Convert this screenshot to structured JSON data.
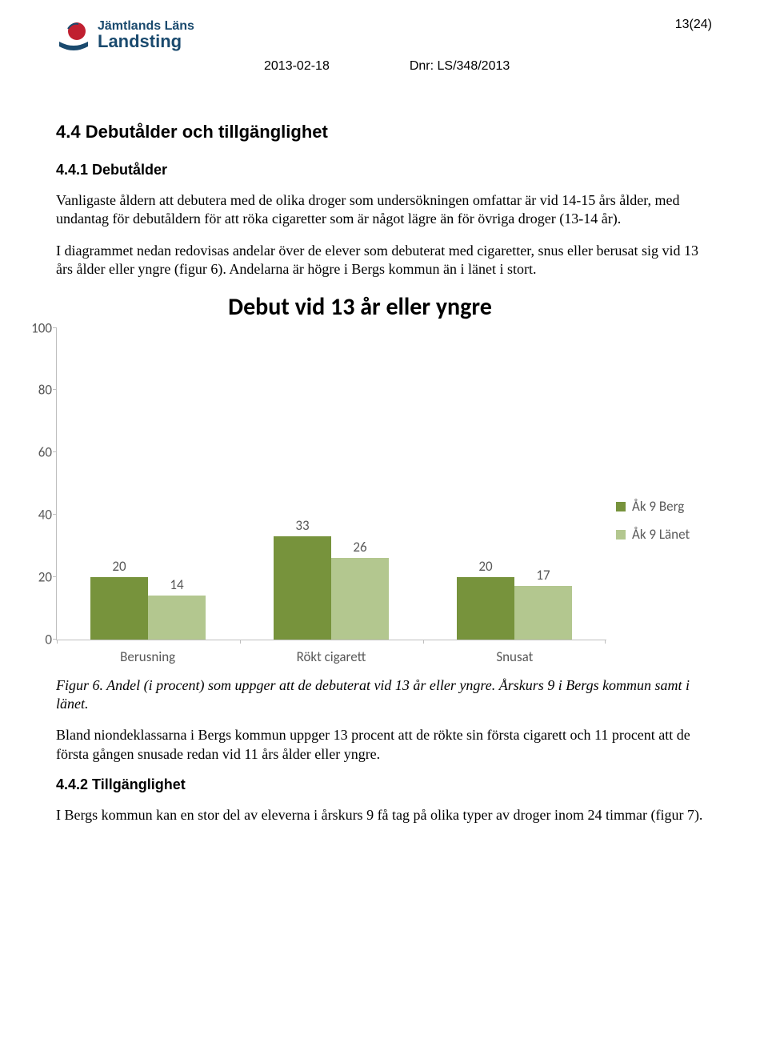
{
  "header": {
    "org_line1": "Jämtlands Läns",
    "org_line2": "Landsting",
    "page_number": "13(24)",
    "date": "2013-02-18",
    "dnr": "Dnr: LS/348/2013"
  },
  "section_title": "4.4 Debutålder och tillgänglighet",
  "subsection_title": "4.4.1 Debutålder",
  "para1": "Vanligaste åldern att debutera med de olika droger som undersökningen omfattar är vid 14-15 års ålder, med undantag för debutåldern för att röka cigaretter som är något lägre än för övriga droger (13-14 år).",
  "para2": "I diagrammet nedan redovisas andelar över de elever som debuterat med cigaretter, snus eller berusat sig vid 13 års ålder eller yngre (figur 6). Andelarna är högre i Bergs kommun än i länet i stort.",
  "chart": {
    "type": "bar",
    "title": "Debut vid 13 år eller yngre",
    "ylim_max": 100,
    "ytick_step": 20,
    "categories": [
      "Berusning",
      "Rökt cigarett",
      "Snusat"
    ],
    "series": [
      {
        "label": "Åk 9 Berg",
        "color": "#77933c",
        "values": [
          20,
          33,
          20
        ]
      },
      {
        "label": "Åk 9 Länet",
        "color": "#b3c78f",
        "values": [
          14,
          26,
          17
        ]
      }
    ]
  },
  "figure_caption": "Figur 6. Andel (i procent) som uppger att de debuterat vid 13 år eller yngre. Årskurs 9 i Bergs kommun samt i länet.",
  "para3": "Bland niondeklassarna i Bergs kommun uppger 13 procent att de rökte sin första cigarett och 11 procent att de första gången snusade redan vid 11 års ålder eller yngre.",
  "subsection2_title": "4.4.2 Tillgänglighet",
  "para4": "I Bergs kommun kan en stor del av eleverna i årskurs 9 få tag på olika typer av droger inom 24 timmar (figur 7)."
}
